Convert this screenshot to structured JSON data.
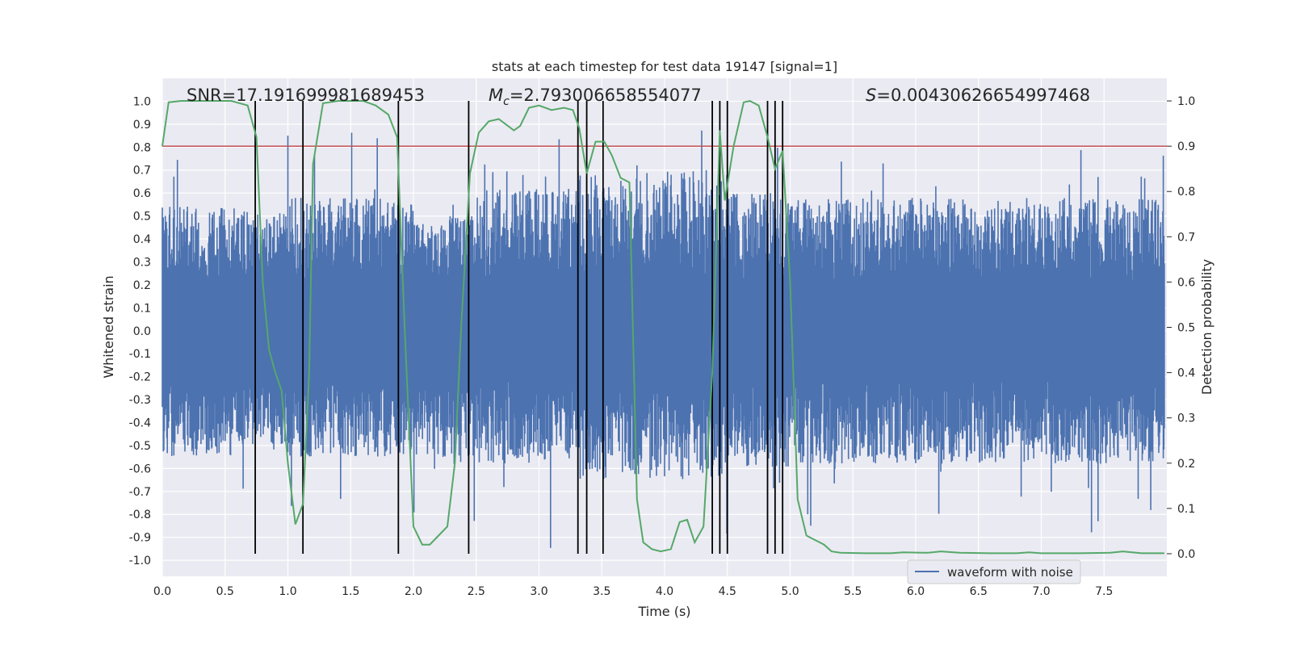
{
  "chart_data": {
    "type": "line",
    "title": "stats at each timestep for test data 19147 [signal=1]",
    "xlabel": "Time (s)",
    "ylabel_left": "Whitened strain",
    "ylabel_right": "Detection probability",
    "xlim": [
      0.0,
      8.0
    ],
    "ylim_left": [
      -1.07,
      1.1
    ],
    "ylim_right": [
      -0.05,
      1.05
    ],
    "x_ticks": [
      "0.0",
      "0.5",
      "1.0",
      "1.5",
      "2.0",
      "2.5",
      "3.0",
      "3.5",
      "4.0",
      "4.5",
      "5.0",
      "5.5",
      "6.0",
      "6.5",
      "7.0",
      "7.5"
    ],
    "y_ticks_left": [
      "-1.0",
      "-0.9",
      "-0.8",
      "-0.7",
      "-0.6",
      "-0.5",
      "-0.4",
      "-0.3",
      "-0.2",
      "-0.1",
      "0.0",
      "0.1",
      "0.2",
      "0.3",
      "0.4",
      "0.5",
      "0.6",
      "0.7",
      "0.8",
      "0.9",
      "1.0"
    ],
    "y_ticks_right": [
      "0.0",
      "0.1",
      "0.2",
      "0.3",
      "0.4",
      "0.5",
      "0.6",
      "0.7",
      "0.8",
      "0.9",
      "1.0"
    ],
    "annotations": {
      "snr": "SNR=17.191699981689453",
      "mc_symbol": "M",
      "mc_sub": "c",
      "mc_value": "=2.793006658554077",
      "s_symbol": "S",
      "s_value": "=0.00430626654997468"
    },
    "threshold": 0.9,
    "vlines": [
      0.74,
      1.12,
      1.88,
      2.44,
      3.31,
      3.38,
      3.51,
      4.38,
      4.44,
      4.5,
      4.82,
      4.88,
      4.94
    ],
    "series": [
      {
        "name": "waveform with noise",
        "kind": "noise",
        "color": "#4c72b0",
        "segments": [
          [
            0.0,
            0.6,
            0.55,
            -0.55,
            1.0,
            -0.87
          ],
          [
            0.6,
            1.0,
            0.52,
            -0.5,
            0.7,
            -0.7
          ],
          [
            1.0,
            2.0,
            0.58,
            -0.55,
            0.92,
            -0.9
          ],
          [
            2.0,
            2.5,
            0.5,
            -0.55,
            0.62,
            -0.85
          ],
          [
            2.5,
            3.3,
            0.62,
            -0.58,
            0.85,
            -0.97
          ],
          [
            3.3,
            4.5,
            0.7,
            -0.65,
            0.9,
            -0.9
          ],
          [
            4.5,
            5.0,
            0.6,
            -0.6,
            0.8,
            -0.82
          ],
          [
            5.0,
            7.98,
            0.58,
            -0.58,
            0.85,
            -0.88
          ]
        ]
      },
      {
        "name": "Detection probability",
        "kind": "line",
        "color": "#55a868",
        "points": [
          [
            0.0,
            0.9
          ],
          [
            0.05,
            0.997
          ],
          [
            0.15,
            1.0
          ],
          [
            0.4,
            1.0
          ],
          [
            0.55,
            1.0
          ],
          [
            0.68,
            0.99
          ],
          [
            0.75,
            0.92
          ],
          [
            0.8,
            0.6
          ],
          [
            0.85,
            0.45
          ],
          [
            0.9,
            0.4
          ],
          [
            0.95,
            0.36
          ],
          [
            1.0,
            0.2
          ],
          [
            1.06,
            0.065
          ],
          [
            1.12,
            0.11
          ],
          [
            1.17,
            0.4
          ],
          [
            1.2,
            0.86
          ],
          [
            1.28,
            0.995
          ],
          [
            1.4,
            1.0
          ],
          [
            1.5,
            1.0
          ],
          [
            1.6,
            1.0
          ],
          [
            1.7,
            0.99
          ],
          [
            1.8,
            0.97
          ],
          [
            1.87,
            0.92
          ],
          [
            1.93,
            0.5
          ],
          [
            2.0,
            0.06
          ],
          [
            2.07,
            0.02
          ],
          [
            2.13,
            0.02
          ],
          [
            2.2,
            0.04
          ],
          [
            2.27,
            0.06
          ],
          [
            2.33,
            0.2
          ],
          [
            2.38,
            0.5
          ],
          [
            2.45,
            0.84
          ],
          [
            2.52,
            0.93
          ],
          [
            2.6,
            0.955
          ],
          [
            2.68,
            0.96
          ],
          [
            2.8,
            0.935
          ],
          [
            2.85,
            0.945
          ],
          [
            2.92,
            0.985
          ],
          [
            3.0,
            0.99
          ],
          [
            3.1,
            0.98
          ],
          [
            3.2,
            0.985
          ],
          [
            3.27,
            0.98
          ],
          [
            3.32,
            0.94
          ],
          [
            3.38,
            0.84
          ],
          [
            3.45,
            0.91
          ],
          [
            3.52,
            0.91
          ],
          [
            3.58,
            0.88
          ],
          [
            3.65,
            0.83
          ],
          [
            3.72,
            0.82
          ],
          [
            3.78,
            0.12
          ],
          [
            3.83,
            0.025
          ],
          [
            3.9,
            0.01
          ],
          [
            3.97,
            0.005
          ],
          [
            4.05,
            0.01
          ],
          [
            4.12,
            0.07
          ],
          [
            4.18,
            0.075
          ],
          [
            4.24,
            0.025
          ],
          [
            4.31,
            0.06
          ],
          [
            4.38,
            0.4
          ],
          [
            4.44,
            0.935
          ],
          [
            4.48,
            0.78
          ],
          [
            4.55,
            0.9
          ],
          [
            4.63,
            0.997
          ],
          [
            4.68,
            1.0
          ],
          [
            4.75,
            0.99
          ],
          [
            4.82,
            0.92
          ],
          [
            4.88,
            0.85
          ],
          [
            4.94,
            0.89
          ],
          [
            5.0,
            0.6
          ],
          [
            5.06,
            0.12
          ],
          [
            5.13,
            0.04
          ],
          [
            5.2,
            0.03
          ],
          [
            5.27,
            0.02
          ],
          [
            5.33,
            0.005
          ],
          [
            5.4,
            0.002
          ],
          [
            5.6,
            0.001
          ],
          [
            5.8,
            0.001
          ],
          [
            5.9,
            0.003
          ],
          [
            6.1,
            0.002
          ],
          [
            6.2,
            0.005
          ],
          [
            6.35,
            0.002
          ],
          [
            6.6,
            0.001
          ],
          [
            6.8,
            0.001
          ],
          [
            6.9,
            0.003
          ],
          [
            7.0,
            0.001
          ],
          [
            7.3,
            0.001
          ],
          [
            7.55,
            0.002
          ],
          [
            7.65,
            0.005
          ],
          [
            7.8,
            0.001
          ],
          [
            7.98,
            0.001
          ]
        ]
      }
    ],
    "legend": {
      "position": "lower-center-right",
      "entries": [
        "waveform with noise"
      ]
    },
    "grid": true,
    "colors": {
      "axes_bg": "#eaeaf2",
      "grid": "#ffffff",
      "noise": "#4c72b0",
      "prob": "#55a868",
      "threshold": "#c44e52",
      "vline": "#000000"
    }
  }
}
